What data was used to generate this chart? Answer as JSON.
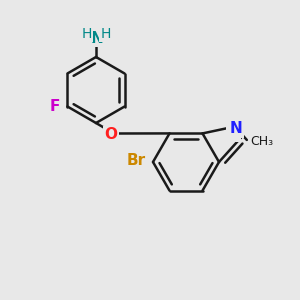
{
  "background_color": "#e8e8e8",
  "bond_color": "#1a1a1a",
  "N_color": "#2020ff",
  "O_color": "#ff2020",
  "F_color": "#cc00cc",
  "Br_color": "#cc8800",
  "NH2_N_color": "#008888",
  "NH2_H_color": "#008888",
  "bond_width": 1.8,
  "figsize": [
    3.0,
    3.0
  ],
  "dpi": 100,
  "xlim": [
    0.0,
    10.0
  ],
  "ylim": [
    0.0,
    10.0
  ]
}
